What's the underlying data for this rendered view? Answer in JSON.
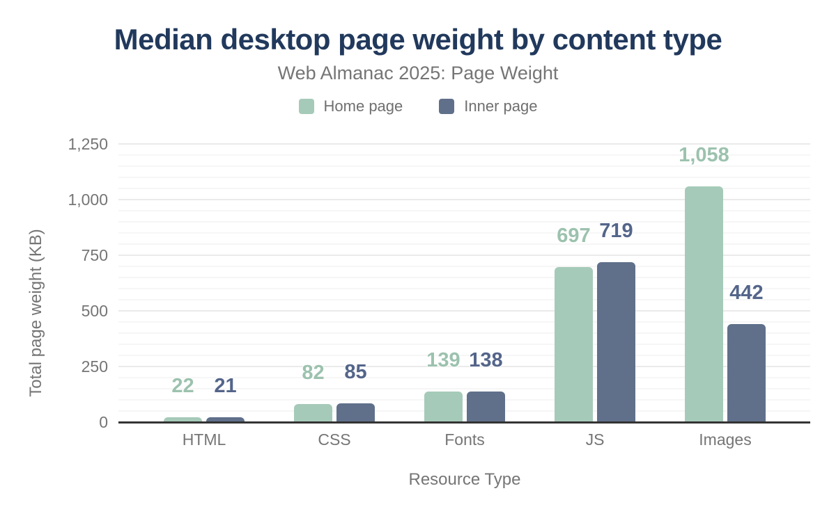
{
  "chart_data": {
    "type": "bar",
    "title": "Median desktop page weight by content type",
    "subtitle": "Web Almanac 2025: Page Weight",
    "xlabel": "Resource Type",
    "ylabel": "Total page weight (KB)",
    "categories": [
      "HTML",
      "CSS",
      "Fonts",
      "JS",
      "Images"
    ],
    "series": [
      {
        "name": "Home page",
        "color": "#a6cab9",
        "label_color": "#9cc2ae",
        "values": [
          22,
          82,
          139,
          697,
          1058
        ],
        "value_labels": [
          "22",
          "82",
          "139",
          "697",
          "1,058"
        ]
      },
      {
        "name": "Inner page",
        "color": "#60708b",
        "label_color": "#54658a",
        "values": [
          21,
          85,
          138,
          719,
          442
        ],
        "value_labels": [
          "21",
          "85",
          "138",
          "719",
          "442"
        ]
      }
    ],
    "ylim": [
      0,
      1250
    ],
    "yticks": [
      0,
      250,
      500,
      750,
      1000,
      1250
    ],
    "ytick_labels": [
      "0",
      "250",
      "500",
      "750",
      "1,000",
      "1,250"
    ],
    "minor_grid_step": 50,
    "grid": true,
    "legend_position": "top",
    "bar_value_labels_shown": true
  },
  "colors": {
    "background": "#ffffff",
    "title_text": "#21395c",
    "secondary_text": "#757575",
    "legend_text": "#6f6f6f",
    "axis_line": "#333333",
    "grid_major": "#eaeaea",
    "grid_minor": "#f6f6f6"
  }
}
